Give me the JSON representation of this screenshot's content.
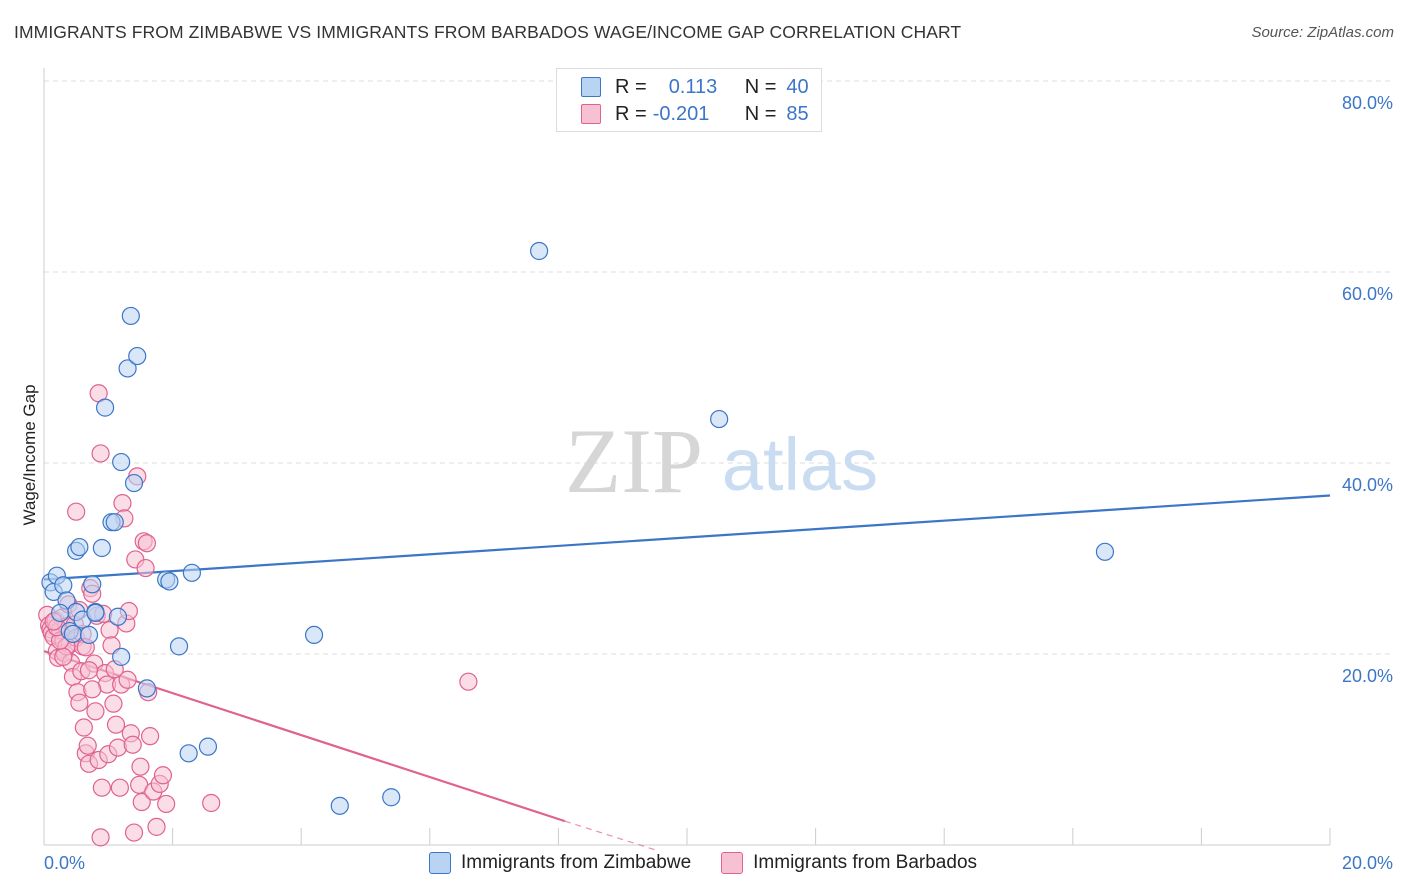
{
  "header": {
    "title": "IMMIGRANTS FROM ZIMBABWE VS IMMIGRANTS FROM BARBADOS WAGE/INCOME GAP CORRELATION CHART",
    "source": "Source: ZipAtlas.com"
  },
  "watermark": {
    "zip": "ZIP",
    "atlas": "atlas"
  },
  "legend": {
    "row1": {
      "r_label": "R =",
      "r_value": "0.113",
      "n_label": "N =",
      "n_value": "40"
    },
    "row2": {
      "r_label": "R =",
      "r_value": "-0.201",
      "n_label": "N =",
      "n_value": "85"
    }
  },
  "colors": {
    "blue": "#3c76c8",
    "blue_fill": "#b9d3f3",
    "pink": "#e0628f",
    "pink_fill": "#f6c1d3",
    "grid": "#dddddd",
    "tick_label": "#3c76c8"
  },
  "chart_data": {
    "type": "scatter",
    "title": "IMMIGRANTS FROM ZIMBABWE VS IMMIGRANTS FROM BARBADOS WAGE/INCOME GAP CORRELATION CHART",
    "xlabel": "",
    "ylabel": "Wage/Income Gap",
    "xlim": [
      0,
      20
    ],
    "ylim": [
      0,
      80
    ],
    "x_tick_labels": [
      "0.0%",
      "20.0%"
    ],
    "y_ticks": [
      20,
      40,
      60,
      80
    ],
    "y_tick_labels": [
      "20.0%",
      "40.0%",
      "60.0%",
      "80.0%"
    ],
    "grid": true,
    "legend_position": "top-center",
    "series": [
      {
        "name": "Immigrants from Zimbabwe",
        "color": "#3c76c8",
        "points": [
          [
            0.1,
            27.5
          ],
          [
            0.15,
            26.5
          ],
          [
            0.2,
            28.2
          ],
          [
            0.3,
            27.2
          ],
          [
            0.35,
            25.6
          ],
          [
            0.4,
            22.4
          ],
          [
            0.45,
            22.1
          ],
          [
            0.5,
            24.4
          ],
          [
            0.5,
            30.8
          ],
          [
            0.55,
            31.2
          ],
          [
            0.6,
            23.6
          ],
          [
            0.7,
            22.0
          ],
          [
            0.75,
            27.3
          ],
          [
            0.8,
            24.4
          ],
          [
            0.8,
            24.3
          ],
          [
            0.9,
            31.1
          ],
          [
            0.95,
            45.8
          ],
          [
            1.05,
            33.8
          ],
          [
            1.1,
            33.8
          ],
          [
            1.15,
            23.9
          ],
          [
            1.2,
            40.1
          ],
          [
            1.3,
            49.9
          ],
          [
            1.35,
            55.4
          ],
          [
            1.4,
            37.9
          ],
          [
            1.45,
            51.2
          ],
          [
            1.2,
            19.7
          ],
          [
            1.6,
            16.4
          ],
          [
            1.9,
            27.8
          ],
          [
            1.95,
            27.6
          ],
          [
            2.1,
            20.8
          ],
          [
            2.3,
            28.5
          ],
          [
            2.25,
            9.6
          ],
          [
            2.55,
            10.3
          ],
          [
            4.2,
            22.0
          ],
          [
            4.6,
            4.1
          ],
          [
            5.4,
            5.0
          ],
          [
            7.7,
            62.2
          ],
          [
            10.5,
            44.6
          ],
          [
            16.5,
            30.7
          ],
          [
            0.25,
            24.3
          ]
        ],
        "trend": {
          "x": [
            0,
            20
          ],
          "y": [
            27.8,
            36.6
          ]
        }
      },
      {
        "name": "Immigrants from Barbados",
        "color": "#e0628f",
        "points": [
          [
            0.05,
            24.1
          ],
          [
            0.08,
            23.0
          ],
          [
            0.1,
            22.6
          ],
          [
            0.12,
            22.2
          ],
          [
            0.15,
            21.8
          ],
          [
            0.18,
            23.5
          ],
          [
            0.2,
            20.3
          ],
          [
            0.22,
            19.6
          ],
          [
            0.25,
            22.5
          ],
          [
            0.28,
            23.8
          ],
          [
            0.3,
            21.4
          ],
          [
            0.32,
            20.1
          ],
          [
            0.35,
            22.9
          ],
          [
            0.38,
            25.2
          ],
          [
            0.4,
            21.0
          ],
          [
            0.42,
            19.1
          ],
          [
            0.45,
            17.6
          ],
          [
            0.48,
            23.1
          ],
          [
            0.5,
            21.7
          ],
          [
            0.52,
            16.0
          ],
          [
            0.55,
            14.9
          ],
          [
            0.58,
            18.2
          ],
          [
            0.6,
            20.8
          ],
          [
            0.62,
            12.3
          ],
          [
            0.65,
            9.6
          ],
          [
            0.68,
            10.4
          ],
          [
            0.7,
            8.5
          ],
          [
            0.72,
            26.9
          ],
          [
            0.75,
            26.3
          ],
          [
            0.78,
            19.0
          ],
          [
            0.8,
            14.0
          ],
          [
            0.82,
            24.0
          ],
          [
            0.85,
            8.9
          ],
          [
            0.88,
            0.8
          ],
          [
            0.9,
            6.0
          ],
          [
            0.92,
            24.2
          ],
          [
            0.95,
            18.0
          ],
          [
            0.98,
            16.8
          ],
          [
            1.0,
            9.5
          ],
          [
            1.02,
            22.5
          ],
          [
            1.05,
            20.9
          ],
          [
            1.08,
            14.8
          ],
          [
            1.1,
            18.4
          ],
          [
            1.12,
            12.6
          ],
          [
            1.15,
            10.2
          ],
          [
            1.18,
            6.0
          ],
          [
            1.2,
            16.8
          ],
          [
            1.22,
            35.8
          ],
          [
            1.25,
            34.2
          ],
          [
            1.28,
            23.2
          ],
          [
            1.3,
            17.3
          ],
          [
            1.32,
            24.5
          ],
          [
            1.35,
            11.7
          ],
          [
            1.38,
            10.5
          ],
          [
            1.4,
            1.3
          ],
          [
            1.42,
            29.9
          ],
          [
            1.45,
            38.6
          ],
          [
            1.48,
            6.3
          ],
          [
            1.5,
            8.2
          ],
          [
            1.52,
            4.5
          ],
          [
            1.55,
            31.8
          ],
          [
            1.58,
            29.0
          ],
          [
            1.6,
            31.6
          ],
          [
            1.62,
            16.0
          ],
          [
            1.65,
            11.4
          ],
          [
            1.7,
            5.6
          ],
          [
            1.75,
            1.9
          ],
          [
            1.8,
            6.4
          ],
          [
            1.85,
            7.3
          ],
          [
            1.9,
            4.3
          ],
          [
            0.85,
            47.3
          ],
          [
            0.88,
            41.0
          ],
          [
            0.5,
            34.9
          ],
          [
            0.55,
            24.6
          ],
          [
            0.6,
            22.1
          ],
          [
            0.65,
            20.7
          ],
          [
            0.7,
            18.3
          ],
          [
            0.75,
            16.3
          ],
          [
            0.35,
            20.8
          ],
          [
            0.3,
            19.7
          ],
          [
            0.25,
            21.4
          ],
          [
            0.2,
            22.8
          ],
          [
            0.15,
            23.4
          ],
          [
            2.6,
            4.4
          ],
          [
            6.6,
            17.1
          ]
        ],
        "trend": {
          "x": [
            0,
            8.1
          ],
          "y": [
            20.3,
            2.5
          ]
        },
        "trend_dashed": {
          "x": [
            8.1,
            9.5
          ],
          "y": [
            2.5,
            -0.5
          ]
        }
      }
    ]
  }
}
